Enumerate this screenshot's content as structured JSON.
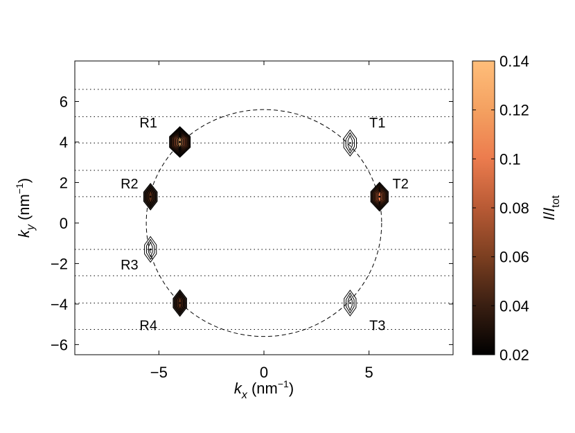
{
  "chart_data": {
    "type": "contour",
    "xlabel": {
      "var": "k",
      "sub": "x",
      "unit_pre": " (nm",
      "unit_sup": "−1",
      "unit_post": ")"
    },
    "ylabel": {
      "var": "k",
      "sub": "y",
      "unit_pre": " (nm",
      "unit_sup": "−1",
      "unit_post": ")"
    },
    "colorbar_label": {
      "num": "I",
      "slash": "/",
      "den": "I",
      "den_sub": "tot"
    },
    "xlim": [
      -9,
      9
    ],
    "ylim": [
      -6.5,
      8
    ],
    "xticks": [
      -5,
      0,
      5
    ],
    "xtick_labels": [
      "−5",
      "0",
      "5"
    ],
    "yticks": [
      -6,
      -4,
      -2,
      0,
      2,
      4,
      6
    ],
    "ytick_labels": [
      "−6",
      "−4",
      "−2",
      "0",
      "2",
      "4",
      "6"
    ],
    "colorbar": {
      "range": [
        0.02,
        0.14
      ],
      "ticks": [
        0.02,
        0.04,
        0.06,
        0.08,
        0.1,
        0.12,
        0.14
      ],
      "tick_labels": [
        "0.02",
        "0.04",
        "0.06",
        "0.08",
        "0.1",
        "0.12",
        "0.14"
      ],
      "colors": [
        "#000000",
        "#3a1f12",
        "#7a3e20",
        "#b85a35",
        "#ec7c4e",
        "#f4a060",
        "#ffbe7a"
      ]
    },
    "circle": {
      "center": [
        0,
        0
      ],
      "radius": 5.6,
      "style": "dashed"
    },
    "horizontal_dotted_lines": [
      6.6,
      5.25,
      3.95,
      2.6,
      1.3,
      -1.3,
      -2.6,
      -3.95,
      -5.25
    ],
    "peaks": [
      {
        "label": "R1",
        "kx": -4.0,
        "ky": 4.0,
        "intensity": 0.14,
        "label_pos": [
          -5.5,
          4.95
        ]
      },
      {
        "label": "R2",
        "kx": -5.4,
        "ky": 1.3,
        "intensity": 0.05,
        "label_pos": [
          -6.4,
          1.95
        ]
      },
      {
        "label": "R3",
        "kx": -5.4,
        "ky": -1.3,
        "intensity": 0.03,
        "label_pos": [
          -6.4,
          -2.05
        ]
      },
      {
        "label": "R4",
        "kx": -4.0,
        "ky": -3.95,
        "intensity": 0.05,
        "label_pos": [
          -5.5,
          -5.05
        ]
      },
      {
        "label": "T1",
        "kx": 4.1,
        "ky": 3.95,
        "intensity": 0.04,
        "label_pos": [
          5.4,
          4.95
        ]
      },
      {
        "label": "T2",
        "kx": 5.5,
        "ky": 1.3,
        "intensity": 0.1,
        "label_pos": [
          6.5,
          1.95
        ]
      },
      {
        "label": "T3",
        "kx": 4.1,
        "ky": -3.95,
        "intensity": 0.03,
        "label_pos": [
          5.4,
          -5.05
        ]
      }
    ]
  }
}
